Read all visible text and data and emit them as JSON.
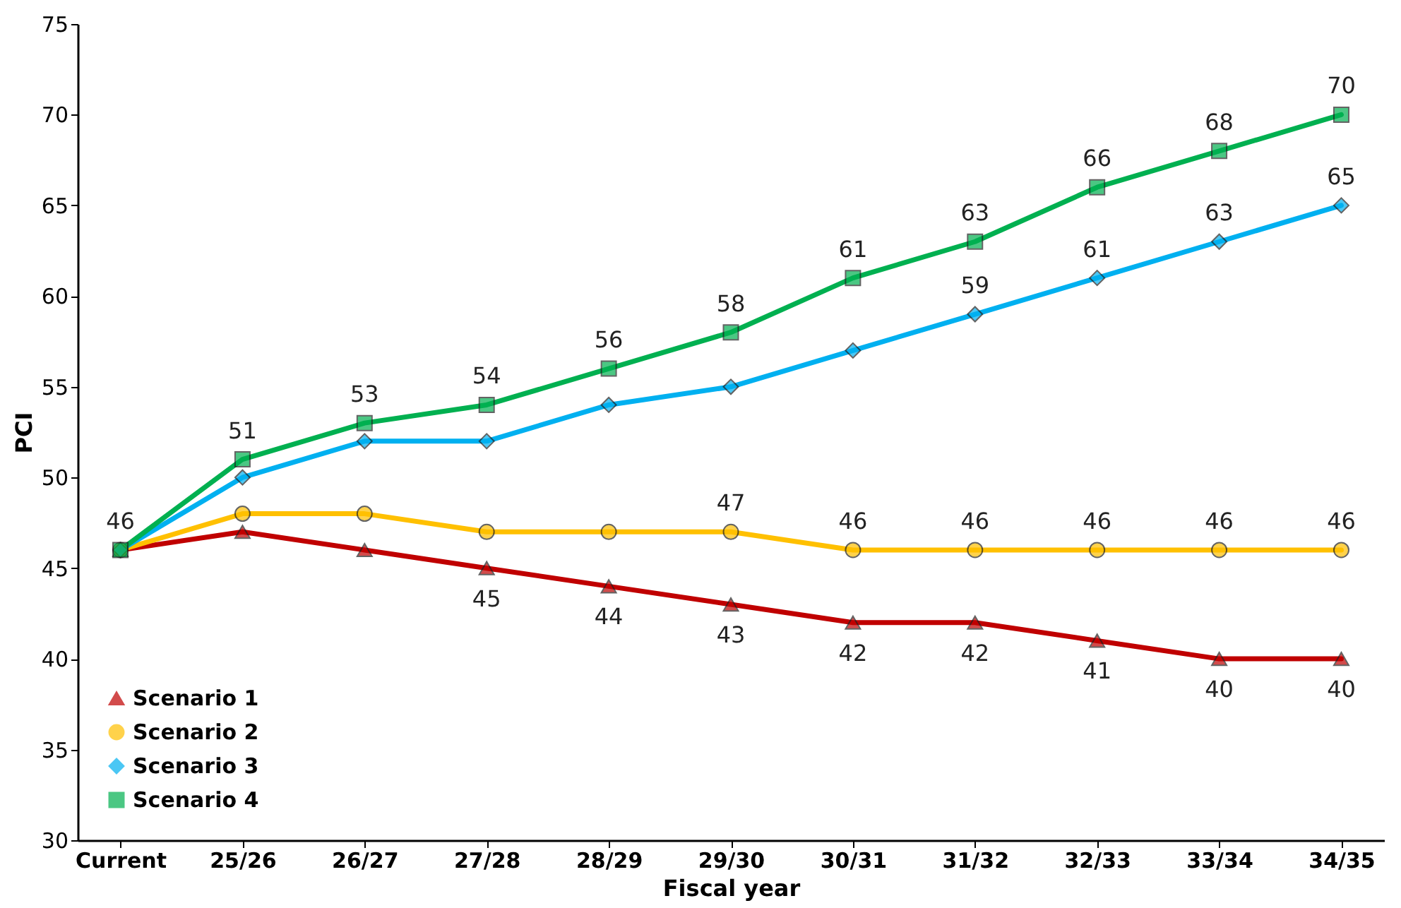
{
  "chart_data": {
    "type": "line",
    "xlabel": "Fiscal year",
    "ylabel": "PCI",
    "categories": [
      "Current",
      "25/26",
      "26/27",
      "27/28",
      "28/29",
      "29/30",
      "30/31",
      "31/32",
      "32/33",
      "33/34",
      "34/35"
    ],
    "ylim": [
      30,
      75
    ],
    "yticks": [
      30,
      35,
      40,
      45,
      50,
      55,
      60,
      65,
      70,
      75
    ],
    "grid": false,
    "legend": "bottom left",
    "series": [
      {
        "name": "Scenario 1",
        "color": "#c00000",
        "marker": "triangle",
        "values": [
          46,
          47,
          46,
          45,
          44,
          43,
          42,
          42,
          41,
          40,
          40
        ],
        "value_labels": [
          null,
          null,
          null,
          "45",
          "44",
          "43",
          "42",
          "42",
          "41",
          "40",
          "40"
        ]
      },
      {
        "name": "Scenario 2",
        "color": "#ffc000",
        "marker": "circle",
        "values": [
          46,
          48,
          48,
          47,
          47,
          47,
          46,
          46,
          46,
          46,
          46
        ],
        "value_labels": [
          null,
          null,
          null,
          null,
          null,
          "47",
          "46",
          "46",
          "46",
          "46",
          "46"
        ]
      },
      {
        "name": "Scenario 3",
        "color": "#00b0f0",
        "marker": "diamond",
        "values": [
          46,
          50,
          52,
          52,
          54,
          55,
          57,
          59,
          61,
          63,
          65
        ],
        "value_labels": [
          null,
          null,
          null,
          null,
          null,
          null,
          null,
          "59",
          "61",
          "63",
          "65"
        ]
      },
      {
        "name": "Scenario 4",
        "color": "#00b050",
        "marker": "square",
        "values": [
          46,
          51,
          53,
          54,
          56,
          58,
          61,
          63,
          66,
          68,
          70
        ],
        "value_labels": [
          "46",
          "51",
          "53",
          "54",
          "56",
          "58",
          "61",
          "63",
          "66",
          "68",
          "70"
        ]
      }
    ]
  }
}
